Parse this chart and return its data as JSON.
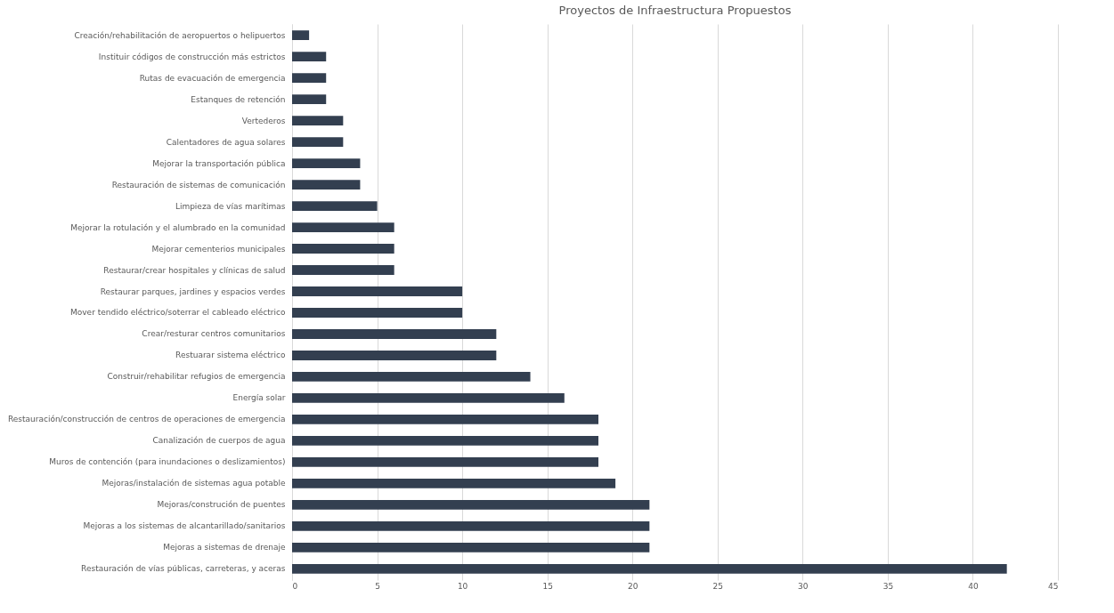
{
  "chart_data": {
    "type": "bar",
    "orientation": "horizontal",
    "title": "Proyectos de Infraestructura Propuestos",
    "categories": [
      "Creación/rehabilitación de aeropuertos o helipuertos",
      "Instituir códigos de construcción más estrictos",
      "Rutas de evacuación de emergencia",
      "Estanques de retención",
      "Vertederos",
      "Calentadores de agua solares",
      "Mejorar la transportación pública",
      "Restauración de sistemas de comunicación",
      "Limpieza de vías marítimas",
      "Mejorar la rotulación y el alumbrado en la comunidad",
      "Mejorar cementerios municipales",
      "Restaurar/crear hospitales y clínicas de salud",
      "Restaurar parques, jardines y espacios verdes",
      "Mover tendido eléctrico/soterrar el cableado eléctrico",
      "Crear/resturar centros comunitarios",
      "Restuarar sistema eléctrico",
      "Construir/rehabilitar refugios de emergencia",
      "Energía solar",
      "Restauración/construcción de centros de operaciones de emergencia",
      "Canalización de cuerpos de agua",
      "Muros de contención (para inundaciones o deslizamientos)",
      "Mejoras/instalación de sistemas agua potable",
      "Mejoras/construción de puentes",
      "Mejoras a los sistemas de alcantarillado/sanitarios",
      "Mejoras a sistemas de drenaje",
      "Restauración de vías públicas, carreteras, y aceras"
    ],
    "values": [
      1,
      2,
      2,
      2,
      3,
      3,
      4,
      4,
      5,
      6,
      6,
      6,
      10,
      10,
      12,
      12,
      14,
      16,
      18,
      18,
      18,
      19,
      21,
      21,
      21,
      42
    ],
    "color": "#333f50",
    "xlim": [
      0,
      45
    ],
    "xticks": [
      0,
      5,
      10,
      15,
      20,
      25,
      30,
      35,
      40,
      45
    ],
    "grid": "x"
  }
}
